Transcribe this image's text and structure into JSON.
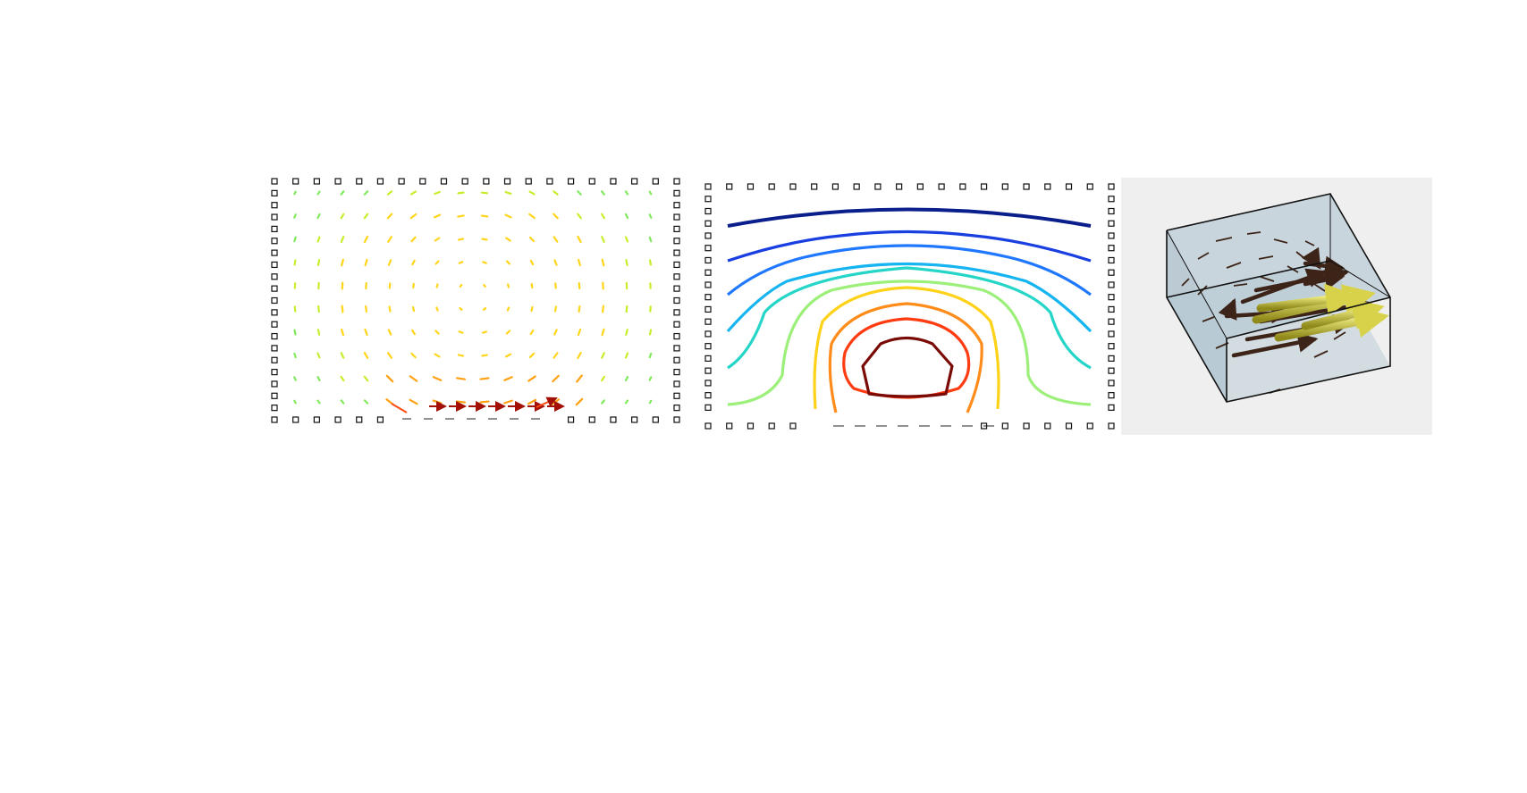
{
  "figure": {
    "panels": [
      {
        "id": "quiver-2d",
        "kind": "vector-field-2d"
      },
      {
        "id": "contour-2d",
        "kind": "contour-lines"
      },
      {
        "id": "quiver-3d",
        "kind": "vector-field-3d"
      }
    ]
  },
  "colors": {
    "background": "#ffffff",
    "marker_stroke": "#111111",
    "panel3_bg": "#efefef",
    "box_fill": "#a9bfcc",
    "box_edge": "#111111",
    "arrow_dark": "#3d2418",
    "arrow_yellow": "#c8c43a",
    "contour_levels": [
      "#0a1f8c",
      "#1a3fe0",
      "#1f78ff",
      "#16b4f0",
      "#25d6c8",
      "#9cf07a",
      "#ffd21a",
      "#ff8c1a",
      "#ff3b12",
      "#d01a08",
      "#7a0a06"
    ],
    "quiver_scale": [
      "#7fea5a",
      "#c6ee2a",
      "#ffd51a",
      "#ffa010",
      "#ff4a10",
      "#a31005"
    ]
  }
}
